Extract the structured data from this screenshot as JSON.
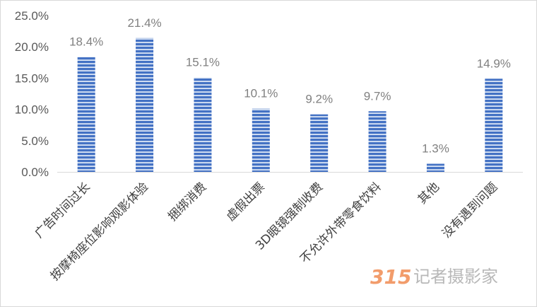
{
  "chart_data": {
    "type": "bar",
    "title": "",
    "xlabel": "",
    "ylabel": "",
    "ylim": [
      0,
      25
    ],
    "y_ticks": [
      "0.0%",
      "5.0%",
      "10.0%",
      "15.0%",
      "20.0%",
      "25.0%"
    ],
    "grid": false,
    "legend": "none",
    "categories": [
      "广告时间过长",
      "按摩椅座位影响观影体验",
      "捆绑消费",
      "虚假出票",
      "3D眼镜强制收费",
      "不允许外带零食饮料",
      "其他",
      "没有遇到问题"
    ],
    "values": [
      18.4,
      21.4,
      15.1,
      10.1,
      9.2,
      9.7,
      1.3,
      14.9
    ],
    "data_labels": [
      "18.4%",
      "21.4%",
      "15.1%",
      "10.1%",
      "9.2%",
      "9.7%",
      "1.3%",
      "14.9%"
    ],
    "bar_color": "#4472c4",
    "bar_pattern": "horizontal-stripes"
  },
  "watermark": {
    "number": "315",
    "text": "记者摄影家"
  }
}
